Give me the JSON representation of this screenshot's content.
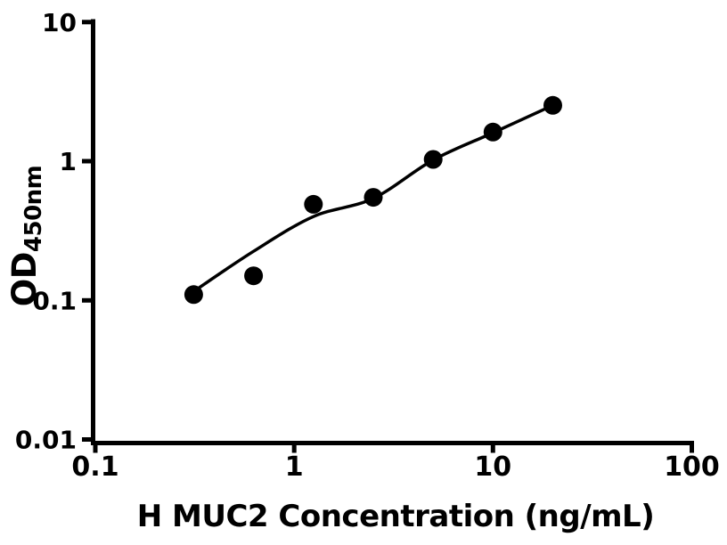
{
  "figure": {
    "background_color": "#ffffff",
    "ink_color": "#000000",
    "title": ""
  },
  "chart_data": {
    "type": "scatter",
    "description": "ELISA standard curve, log-log axes, black filled circles with fitted curve",
    "title": "",
    "xlabel": "H MUC2 Concentration (ng/mL)",
    "ylabel_main": "OD",
    "ylabel_subscript": "450nm",
    "x_scale": "log",
    "y_scale": "log",
    "xlim": [
      0.1,
      100
    ],
    "ylim": [
      0.01,
      10
    ],
    "grid": false,
    "legend": "none",
    "x_ticks": [
      {
        "value": 0.1,
        "label": "0.1"
      },
      {
        "value": 1,
        "label": "1"
      },
      {
        "value": 10,
        "label": "10"
      },
      {
        "value": 100,
        "label": "100"
      }
    ],
    "y_ticks": [
      {
        "value": 0.01,
        "label": "0.01"
      },
      {
        "value": 0.1,
        "label": "0.1"
      },
      {
        "value": 1,
        "label": "1"
      },
      {
        "value": 10,
        "label": "10"
      }
    ],
    "series": [
      {
        "name": "standards",
        "marker": "filled-circle",
        "marker_color": "#000000",
        "points": [
          {
            "x": 0.3125,
            "y": 0.11
          },
          {
            "x": 0.625,
            "y": 0.15
          },
          {
            "x": 1.25,
            "y": 0.49
          },
          {
            "x": 2.5,
            "y": 0.55
          },
          {
            "x": 5,
            "y": 1.03
          },
          {
            "x": 10,
            "y": 1.62
          },
          {
            "x": 20,
            "y": 2.52
          }
        ]
      }
    ],
    "fit_curve": {
      "name": "fitted-standard-curve",
      "line_color": "#000000",
      "points": [
        {
          "x": 0.3125,
          "y": 0.116
        },
        {
          "x": 0.625,
          "y": 0.225
        },
        {
          "x": 1.25,
          "y": 0.4
        },
        {
          "x": 2.5,
          "y": 0.54
        },
        {
          "x": 5,
          "y": 1.02
        },
        {
          "x": 10,
          "y": 1.6
        },
        {
          "x": 20,
          "y": 2.52
        }
      ]
    }
  }
}
